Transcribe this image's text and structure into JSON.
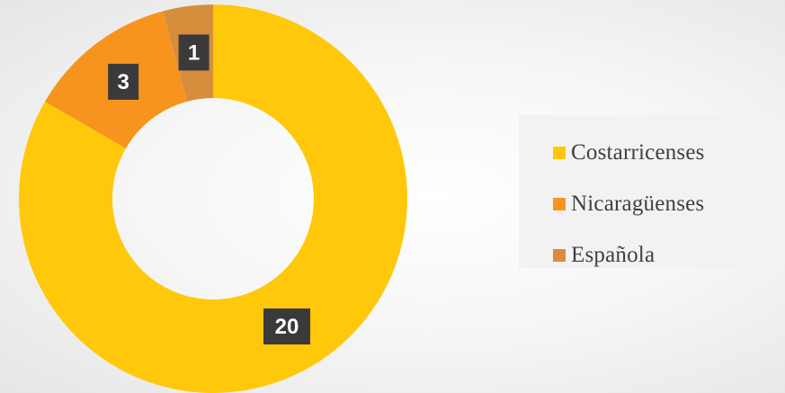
{
  "chart_data": {
    "type": "pie",
    "subtype": "donut",
    "categories": [
      "Costarricenses",
      "Nicaragüenses",
      "Española"
    ],
    "values": [
      20,
      3,
      1
    ],
    "colors": [
      "#FFC80A",
      "#F7941D",
      "#D68D3C"
    ],
    "data_labels": [
      "20",
      "3",
      "1"
    ],
    "legend": {
      "position": "right",
      "entries": [
        "Costarricenses",
        "Nicaragüenses",
        "Española"
      ]
    }
  }
}
